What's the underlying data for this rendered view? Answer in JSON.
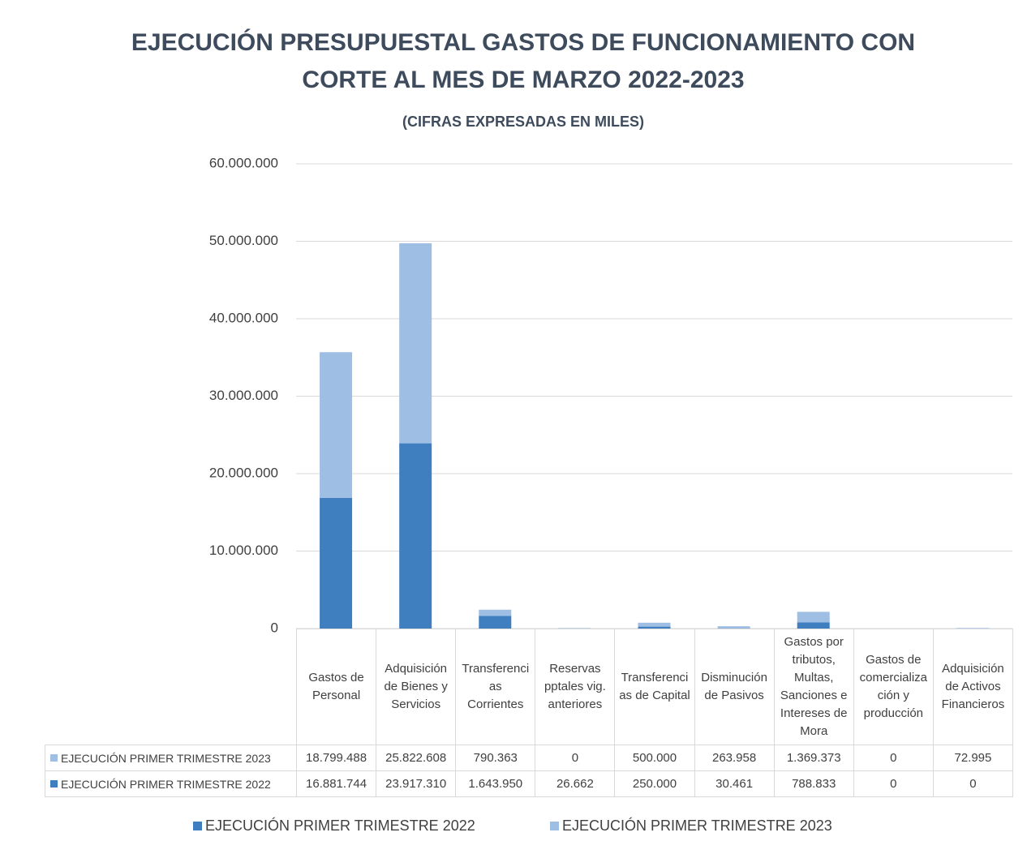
{
  "chart_data": {
    "type": "stacked_bar",
    "title": "EJECUCIÓN PRESUPUESTAL GASTOS DE FUNCIONAMIENTO CON CORTE AL MES DE MARZO 2022-2023",
    "subtitle": "(CIFRAS EXPRESADAS EN MILES)",
    "categories": [
      "Gastos de Personal",
      "Adquisición de Bienes y Servicios",
      "Transferencias Corrientes",
      "Reservas pptales vig. anteriores",
      "Transferencias de Capital",
      "Disminución de Pasivos",
      "Gastos por tributos, Multas, Sanciones e Intereses de Mora",
      "Gastos de comercialización y producción",
      "Adquisición de Activos Financieros"
    ],
    "series": [
      {
        "name": "EJECUCIÓN PRIMER TRIMESTRE 2022",
        "color": "#3f7fc0",
        "values": [
          16881744,
          23917310,
          1643950,
          26662,
          250000,
          30461,
          788833,
          0,
          0
        ],
        "value_labels": [
          "16.881.744",
          "23.917.310",
          "1.643.950",
          "26.662",
          "250.000",
          "30.461",
          "788.833",
          "0",
          "0"
        ]
      },
      {
        "name": "EJECUCIÓN PRIMER TRIMESTRE 2023",
        "color": "#9fbee4",
        "values": [
          18799488,
          25822608,
          790363,
          0,
          500000,
          263958,
          1369373,
          0,
          72995
        ],
        "value_labels": [
          "18.799.488",
          "25.822.608",
          "790.363",
          "0",
          "500.000",
          "263.958",
          "1.369.373",
          "0",
          "72.995"
        ]
      }
    ],
    "ylim": [
      0,
      60000000
    ],
    "yticks": [
      0,
      {
        "value": 10000000,
        "label": "10.000.000"
      },
      {
        "value": 20000000,
        "label": "20.000.000"
      },
      {
        "value": 30000000,
        "label": "30.000.000"
      },
      {
        "value": 40000000,
        "label": "40.000.000"
      },
      {
        "value": 50000000,
        "label": "50.000.000"
      },
      {
        "value": 60000000,
        "label": "60.000.000"
      }
    ],
    "grid": true,
    "legend": "bottom",
    "data_table": true
  }
}
